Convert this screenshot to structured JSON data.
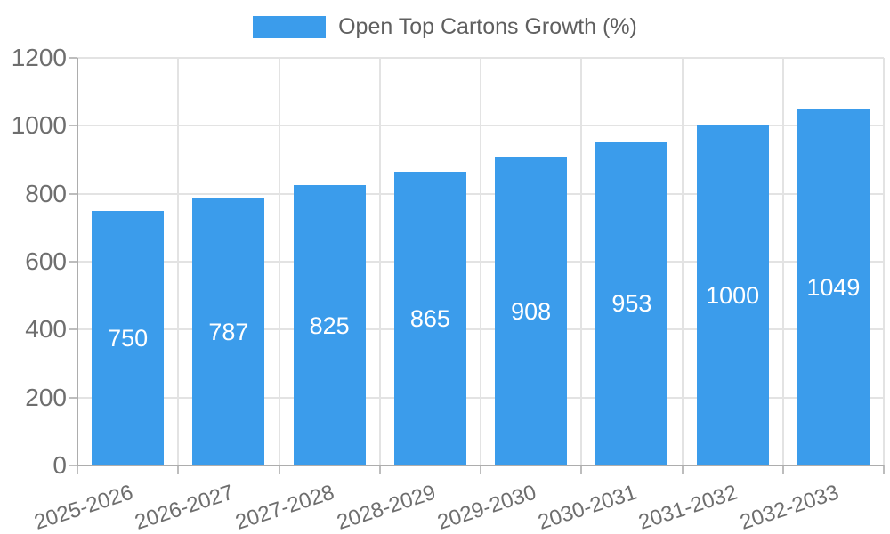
{
  "chart_data": {
    "type": "bar",
    "title": "",
    "series_name": "Open Top Cartons Growth (%)",
    "categories": [
      "2025-2026",
      "2026-2027",
      "2027-2028",
      "2028-2029",
      "2029-2030",
      "2030-2031",
      "2031-2032",
      "2032-2033"
    ],
    "values": [
      750,
      787,
      825,
      865,
      908,
      953,
      1000,
      1049
    ],
    "xlabel": "",
    "ylabel": "",
    "ylim": [
      0,
      1200
    ],
    "yticks": [
      0,
      200,
      400,
      600,
      800,
      1000,
      1200
    ],
    "grid": true,
    "legend_position": "top",
    "bar_color": "#3b9ceb",
    "bar_label_color": "#ffffff",
    "tick_label_color": "#6e6e6e",
    "legend_text_color": "#5f5f5f",
    "grid_color": "#e3e3e3",
    "axis_color": "#adadad",
    "tick_color": "#bdbdbd",
    "background_color": "#ffffff"
  }
}
